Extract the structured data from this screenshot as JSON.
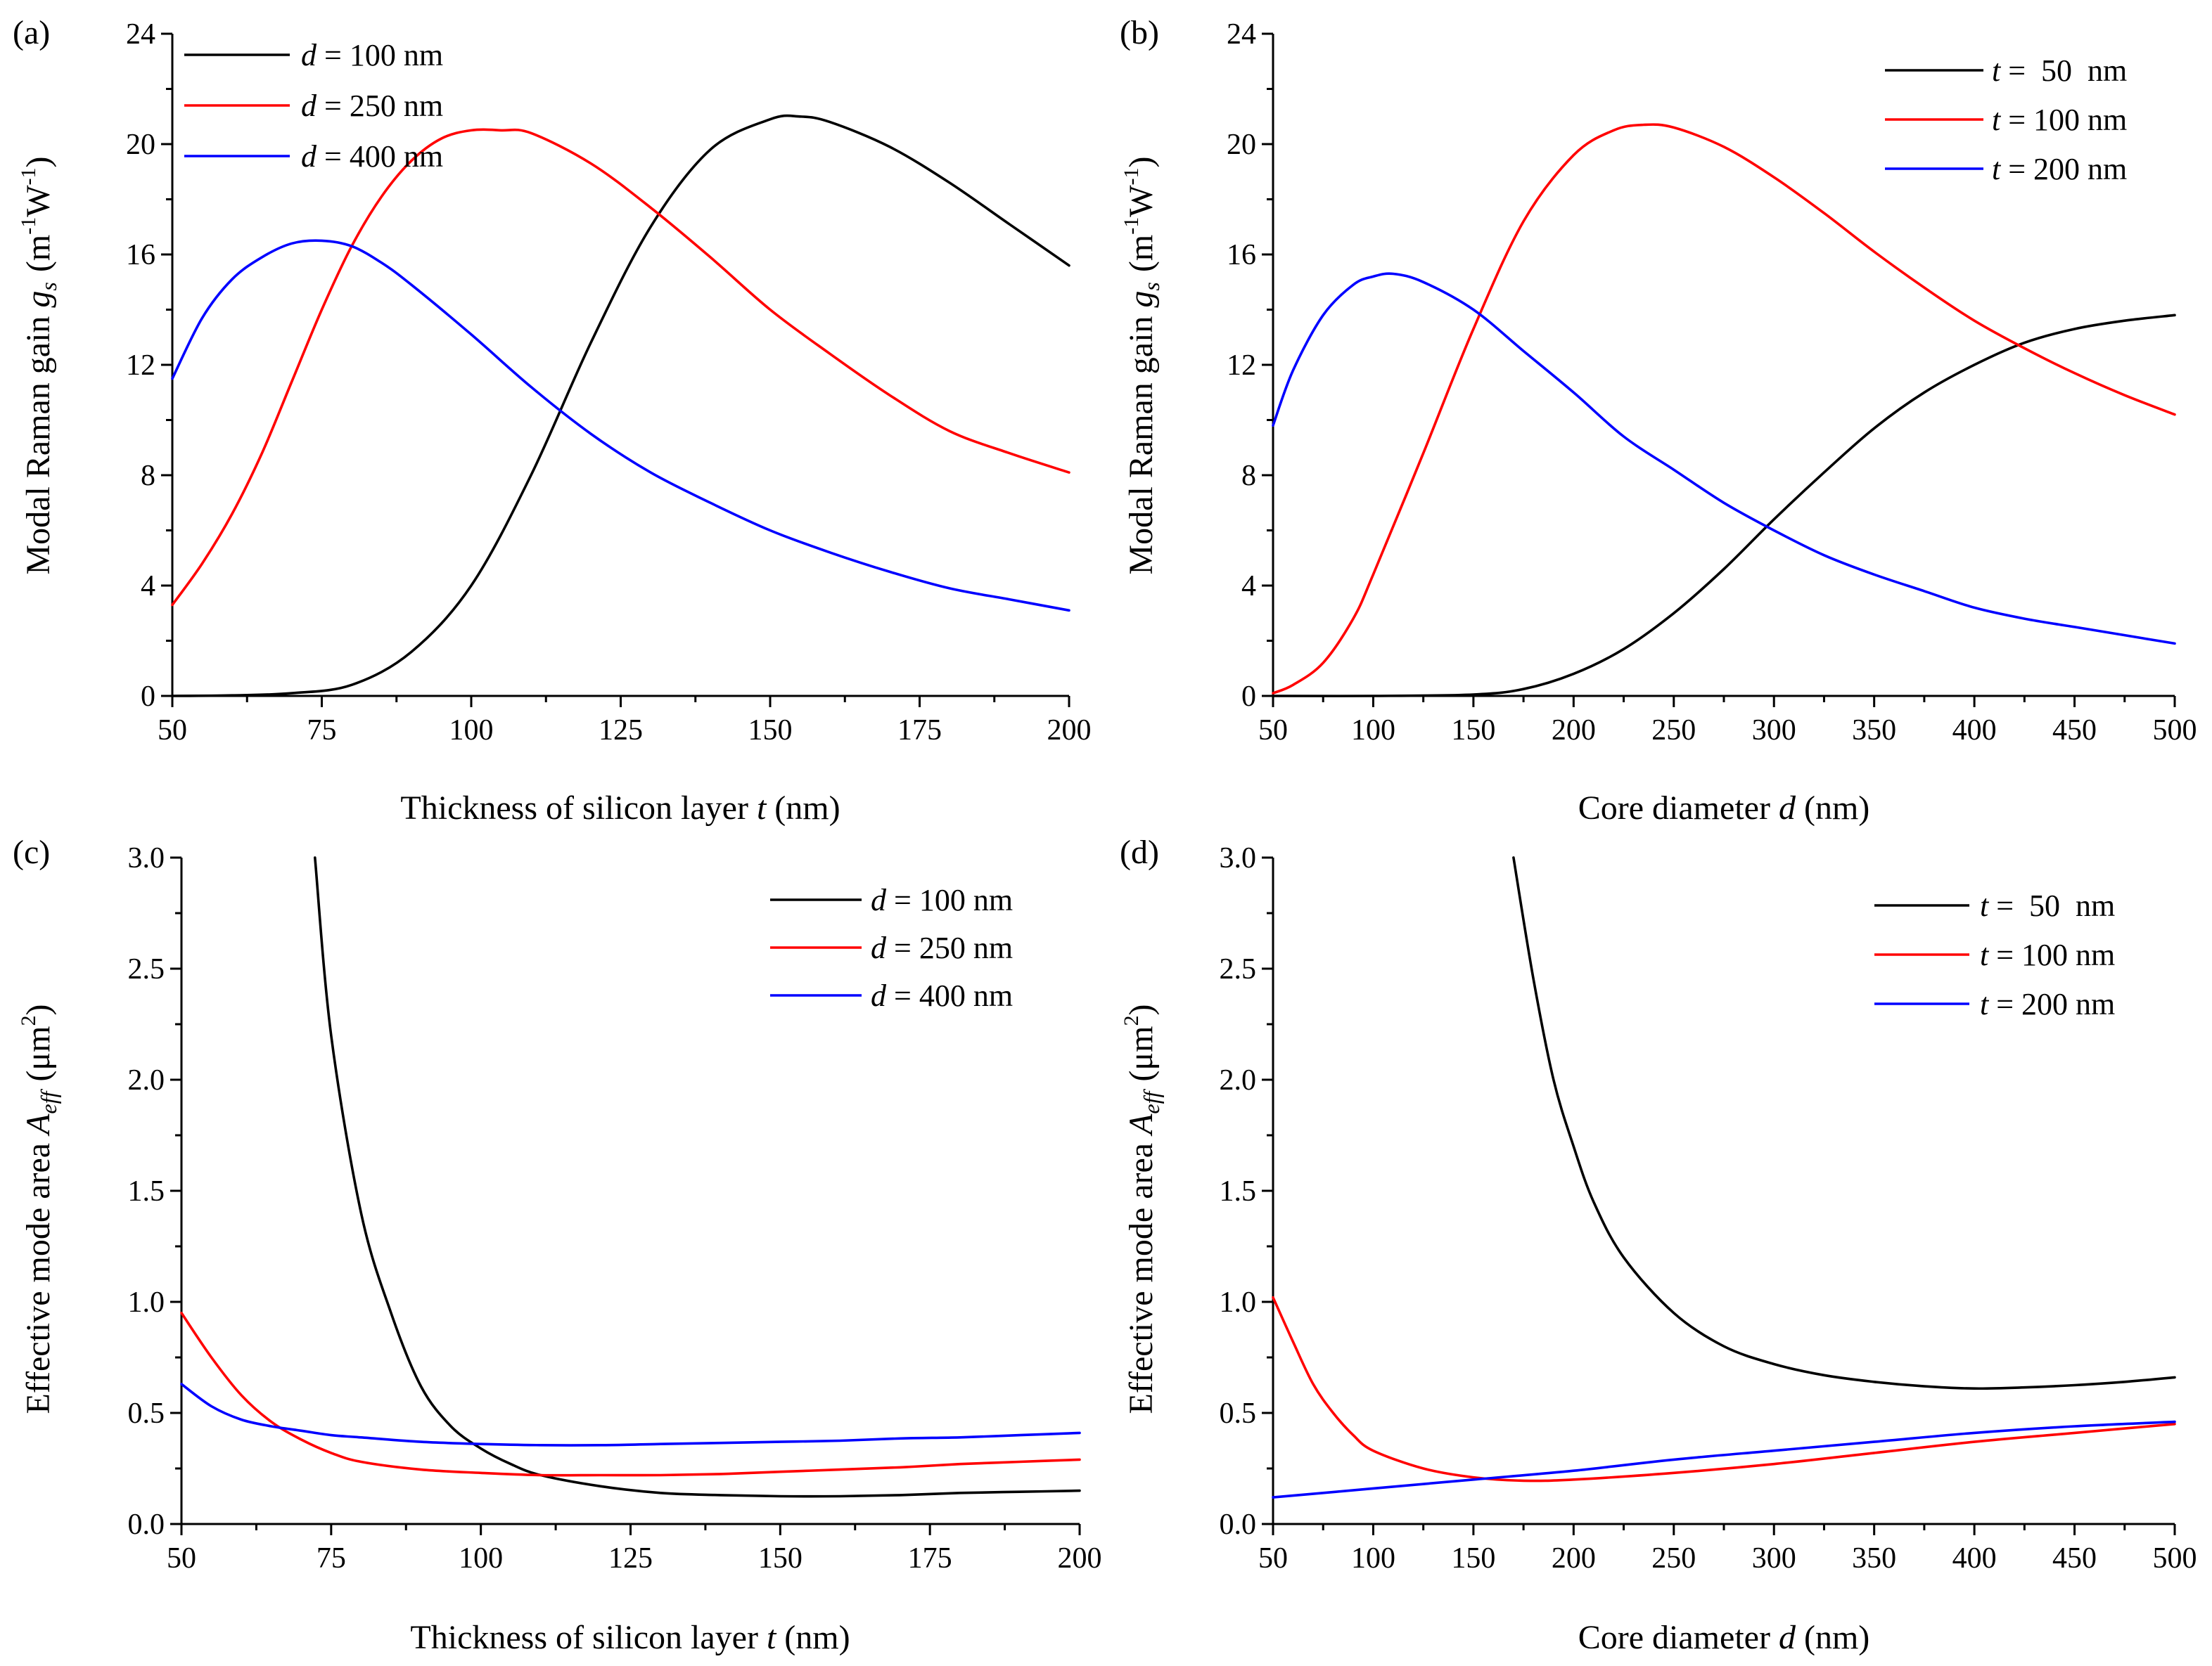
{
  "colors": {
    "black": "#000000",
    "red": "#ff0000",
    "blue": "#0000ff"
  },
  "chart_data": [
    {
      "type": "line",
      "panel_label": "(a)",
      "xlabel_text": "Thickness of silicon layer ",
      "xlabel_var": "t",
      "xlabel_unit": " (nm)",
      "ylabel_text": "Modal Raman gain ",
      "ylabel_var": "g",
      "ylabel_sub": "s",
      "ylabel_unit": "(m-1W-1)",
      "xlim": [
        50,
        200
      ],
      "ylim": [
        0,
        24
      ],
      "xticks": [
        "50",
        "75",
        "100",
        "125",
        "150",
        "175",
        "200"
      ],
      "yticks": [
        "0",
        "4",
        "8",
        "12",
        "16",
        "20",
        "24"
      ],
      "legend_position": "top-left",
      "series": [
        {
          "legend_var": "d",
          "legend_rest": " = 100 nm",
          "color": "#000000",
          "x": [
            50,
            60,
            70,
            80,
            90,
            100,
            110,
            120,
            130,
            140,
            150,
            155,
            160,
            170,
            180,
            190,
            200
          ],
          "y": [
            0,
            0.02,
            0.1,
            0.4,
            1.6,
            4.0,
            8.0,
            12.8,
            17.0,
            19.8,
            20.9,
            21.0,
            20.8,
            19.9,
            18.6,
            17.1,
            15.6
          ]
        },
        {
          "legend_var": "d",
          "legend_rest": " = 250 nm",
          "color": "#ff0000",
          "x": [
            50,
            55,
            60,
            65,
            70,
            75,
            80,
            85,
            90,
            95,
            100,
            105,
            110,
            120,
            130,
            140,
            150,
            160,
            170,
            180,
            190,
            200
          ],
          "y": [
            3.3,
            4.8,
            6.6,
            8.8,
            11.4,
            14.0,
            16.3,
            18.1,
            19.4,
            20.2,
            20.5,
            20.5,
            20.4,
            19.3,
            17.7,
            15.9,
            14.0,
            12.4,
            10.9,
            9.6,
            8.8,
            8.1
          ]
        },
        {
          "legend_var": "d",
          "legend_rest": " = 400 nm",
          "color": "#0000ff",
          "x": [
            50,
            55,
            60,
            65,
            70,
            75,
            80,
            85,
            90,
            100,
            110,
            120,
            130,
            140,
            150,
            160,
            170,
            180,
            190,
            200
          ],
          "y": [
            11.5,
            13.7,
            15.1,
            15.9,
            16.4,
            16.5,
            16.3,
            15.7,
            14.9,
            13.1,
            11.2,
            9.5,
            8.1,
            7.0,
            6.0,
            5.2,
            4.5,
            3.9,
            3.5,
            3.1
          ]
        }
      ]
    },
    {
      "type": "line",
      "panel_label": "(b)",
      "xlabel_text": "Core diameter ",
      "xlabel_var": "d",
      "xlabel_unit": " (nm)",
      "ylabel_text": "Modal Raman gain ",
      "ylabel_var": "g",
      "ylabel_sub": "s",
      "ylabel_unit": "(m-1W-1)",
      "xlim": [
        50,
        500
      ],
      "ylim": [
        0,
        24
      ],
      "xticks": [
        "50",
        "100",
        "150",
        "200",
        "250",
        "300",
        "350",
        "400",
        "450",
        "500"
      ],
      "yticks": [
        "0",
        "4",
        "8",
        "12",
        "16",
        "20",
        "24"
      ],
      "legend_position": "top-right",
      "series": [
        {
          "legend_var": "t",
          "legend_rest": " =  50  nm",
          "color": "#000000",
          "x": [
            50,
            100,
            150,
            175,
            200,
            225,
            250,
            275,
            300,
            325,
            350,
            375,
            400,
            425,
            450,
            475,
            500
          ],
          "y": [
            0,
            0,
            0.05,
            0.25,
            0.8,
            1.7,
            3.0,
            4.6,
            6.4,
            8.1,
            9.7,
            11.0,
            12.0,
            12.8,
            13.3,
            13.6,
            13.8
          ]
        },
        {
          "legend_var": "t",
          "legend_rest": " = 100 nm",
          "color": "#ff0000",
          "x": [
            50,
            60,
            75,
            90,
            100,
            125,
            150,
            175,
            200,
            220,
            235,
            250,
            275,
            300,
            325,
            350,
            375,
            400,
            425,
            450,
            475,
            500
          ],
          "y": [
            0.1,
            0.4,
            1.2,
            2.8,
            4.4,
            8.8,
            13.3,
            17.2,
            19.6,
            20.5,
            20.7,
            20.6,
            19.9,
            18.8,
            17.5,
            16.1,
            14.8,
            13.6,
            12.6,
            11.7,
            10.9,
            10.2
          ]
        },
        {
          "legend_var": "t",
          "legend_rest": " = 200 nm",
          "color": "#0000ff",
          "x": [
            50,
            60,
            75,
            90,
            100,
            110,
            125,
            150,
            175,
            200,
            225,
            250,
            275,
            300,
            325,
            350,
            375,
            400,
            425,
            450,
            475,
            500
          ],
          "y": [
            9.8,
            11.8,
            13.8,
            14.9,
            15.2,
            15.3,
            15.0,
            14.0,
            12.5,
            11.0,
            9.4,
            8.2,
            7.0,
            6.0,
            5.1,
            4.4,
            3.8,
            3.2,
            2.8,
            2.5,
            2.2,
            1.9
          ]
        }
      ]
    },
    {
      "type": "line",
      "panel_label": "(c)",
      "xlabel_text": "Thickness of silicon layer ",
      "xlabel_var": "t",
      "xlabel_unit": " (nm)",
      "ylabel_text": "Effective mode area ",
      "ylabel_var": "A",
      "ylabel_sub": "eff",
      "ylabel_unit": "(μm2)",
      "xlim": [
        50,
        200
      ],
      "ylim": [
        0,
        3.0
      ],
      "xticks": [
        "50",
        "75",
        "100",
        "125",
        "150",
        "175",
        "200"
      ],
      "yticks": [
        "0.0",
        "0.5",
        "1.0",
        "1.5",
        "2.0",
        "2.5",
        "3.0"
      ],
      "legend_position": "top-right",
      "series": [
        {
          "legend_var": "d",
          "legend_rest": " = 100 nm",
          "color": "#000000",
          "x": [
            72.3,
            75,
            80,
            85,
            90,
            95,
            100,
            105,
            110,
            120,
            130,
            140,
            150,
            160,
            170,
            180,
            190,
            200
          ],
          "y": [
            3.0,
            2.2,
            1.4,
            0.95,
            0.62,
            0.44,
            0.34,
            0.27,
            0.22,
            0.17,
            0.14,
            0.13,
            0.125,
            0.125,
            0.13,
            0.14,
            0.145,
            0.15
          ]
        },
        {
          "legend_var": "d",
          "legend_rest": " = 250 nm",
          "color": "#ff0000",
          "x": [
            50,
            55,
            60,
            65,
            70,
            75,
            80,
            90,
            100,
            110,
            120,
            130,
            140,
            150,
            160,
            170,
            180,
            190,
            200
          ],
          "y": [
            0.95,
            0.75,
            0.58,
            0.46,
            0.38,
            0.32,
            0.28,
            0.245,
            0.23,
            0.22,
            0.22,
            0.22,
            0.225,
            0.235,
            0.245,
            0.255,
            0.27,
            0.28,
            0.29
          ]
        },
        {
          "legend_var": "d",
          "legend_rest": " = 400 nm",
          "color": "#0000ff",
          "x": [
            50,
            55,
            60,
            65,
            70,
            75,
            80,
            90,
            100,
            110,
            120,
            130,
            140,
            150,
            160,
            170,
            180,
            190,
            200
          ],
          "y": [
            0.63,
            0.53,
            0.47,
            0.44,
            0.42,
            0.4,
            0.39,
            0.37,
            0.36,
            0.355,
            0.355,
            0.36,
            0.365,
            0.37,
            0.375,
            0.385,
            0.39,
            0.4,
            0.41
          ]
        }
      ]
    },
    {
      "type": "line",
      "panel_label": "(d)",
      "xlabel_text": "Core diameter ",
      "xlabel_var": "d",
      "xlabel_unit": " (nm)",
      "ylabel_text": "Effective mode area ",
      "ylabel_var": "A",
      "ylabel_sub": "eff",
      "ylabel_unit": "(μm2)",
      "xlim": [
        50,
        500
      ],
      "ylim": [
        0,
        3.0
      ],
      "xticks": [
        "50",
        "100",
        "150",
        "200",
        "250",
        "300",
        "350",
        "400",
        "450",
        "500"
      ],
      "yticks": [
        "0.0",
        "0.5",
        "1.0",
        "1.5",
        "2.0",
        "2.5",
        "3.0"
      ],
      "legend_position": "top-right",
      "series": [
        {
          "legend_var": "t",
          "legend_rest": " =  50  nm",
          "color": "#000000",
          "x": [
            170,
            180,
            190,
            200,
            210,
            225,
            250,
            275,
            300,
            325,
            350,
            375,
            400,
            425,
            450,
            475,
            500
          ],
          "y": [
            3.0,
            2.45,
            2.0,
            1.7,
            1.45,
            1.2,
            0.95,
            0.8,
            0.72,
            0.67,
            0.64,
            0.62,
            0.61,
            0.615,
            0.625,
            0.64,
            0.66
          ]
        },
        {
          "legend_var": "t",
          "legend_rest": " = 100 nm",
          "color": "#ff0000",
          "x": [
            50,
            60,
            70,
            80,
            90,
            100,
            125,
            150,
            175,
            200,
            250,
            300,
            350,
            400,
            450,
            500
          ],
          "y": [
            1.02,
            0.82,
            0.63,
            0.5,
            0.4,
            0.33,
            0.25,
            0.21,
            0.195,
            0.2,
            0.23,
            0.27,
            0.32,
            0.37,
            0.41,
            0.45
          ]
        },
        {
          "legend_var": "t",
          "legend_rest": " = 200 nm",
          "color": "#0000ff",
          "x": [
            50,
            100,
            150,
            200,
            250,
            300,
            350,
            400,
            450,
            500
          ],
          "y": [
            0.12,
            0.16,
            0.2,
            0.24,
            0.29,
            0.33,
            0.37,
            0.41,
            0.44,
            0.46
          ]
        }
      ]
    }
  ]
}
